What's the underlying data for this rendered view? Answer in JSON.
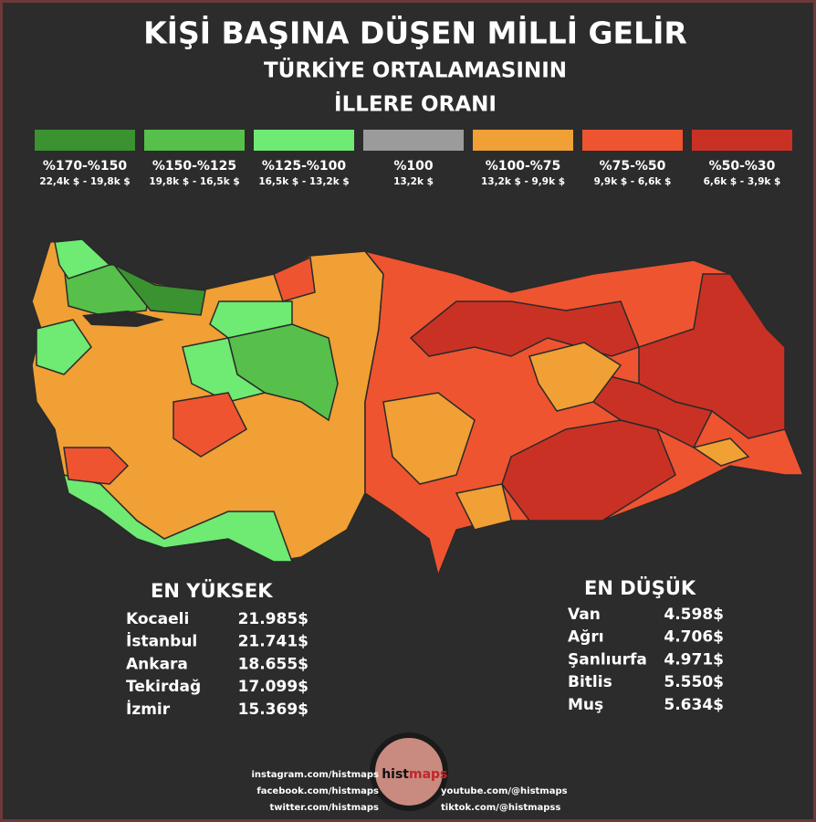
{
  "header": {
    "title": "KİŞİ BAŞINA DÜŞEN MİLLİ GELİR",
    "subtitle_lines": [
      "TÜRKİYE ORTALAMASININ",
      "İLLERE ORANI"
    ]
  },
  "legend": [
    {
      "range": "%170-%150",
      "amount": "22,4k $ - 19,8k $",
      "color": "#3b9230"
    },
    {
      "range": "%150-%125",
      "amount": "19,8k $ - 16,5k $",
      "color": "#56c04a"
    },
    {
      "range": "%125-%100",
      "amount": "16,5k $ - 13,2k $",
      "color": "#6fea72"
    },
    {
      "range": "%100",
      "amount": "13,2k $",
      "color": "#9b9b9b"
    },
    {
      "range": "%100-%75",
      "amount": "13,2k $ - 9,9k $",
      "color": "#f0a034"
    },
    {
      "range": "%75-%50",
      "amount": "9,9k $ - 6,6k $",
      "color": "#ee5430"
    },
    {
      "range": "%50-%30",
      "amount": "6,6k $ - 3,9k $",
      "color": "#c93125"
    }
  ],
  "highest": {
    "title": "EN YÜKSEK",
    "rows": [
      {
        "name": "Kocaeli",
        "value": "21.985$"
      },
      {
        "name": "İstanbul",
        "value": "21.741$"
      },
      {
        "name": "Ankara",
        "value": "18.655$"
      },
      {
        "name": "Tekirdağ",
        "value": "17.099$"
      },
      {
        "name": "İzmir",
        "value": "15.369$"
      }
    ]
  },
  "lowest": {
    "title": "EN DÜŞÜK",
    "rows": [
      {
        "name": "Van",
        "value": "4.598$"
      },
      {
        "name": "Ağrı",
        "value": "4.706$"
      },
      {
        "name": "Şanlıurfa",
        "value": "4.971$"
      },
      {
        "name": "Bitlis",
        "value": "5.550$"
      },
      {
        "name": "Muş",
        "value": "5.634$"
      }
    ]
  },
  "social": {
    "left": [
      "instagram.com/histmaps",
      "facebook.com/histmaps",
      "twitter.com/histmaps"
    ],
    "right": [
      "youtube.com/@histmaps",
      "tiktok.com/@histmapss"
    ]
  },
  "logo": {
    "prefix": "hist",
    "suffix": "maps"
  }
}
